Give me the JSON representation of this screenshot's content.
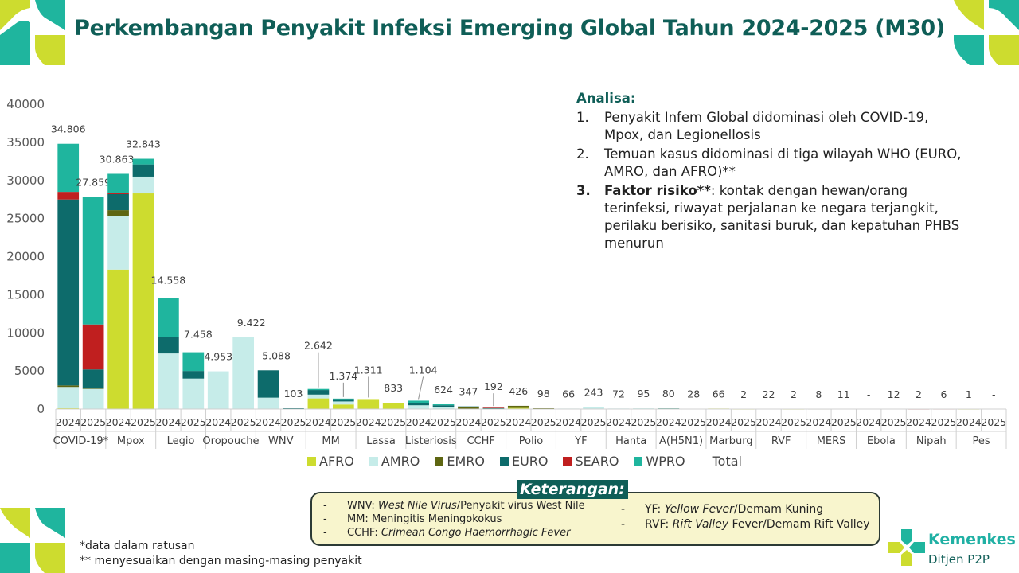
{
  "title": "Perkembangan Penyakit Infeksi Emerging Global Tahun 2024-2025 (M30)",
  "analysis": {
    "heading": "Analisa:",
    "items": [
      {
        "num": "1.",
        "text": "Penyakit Infem Global didominasi oleh COVID-19, Mpox, dan Legionellosis"
      },
      {
        "num": "2.",
        "text": "Temuan kasus didominasi di tiga wilayah WHO (EURO, AMRO, dan AFRO)**"
      },
      {
        "num": "3.",
        "bold": "Faktor risiko**",
        "text": ": kontak dengan hewan/orang terinfeksi, riwayat perjalanan ke negara terjangkit, perilaku berisiko, sanitasi buruk, dan kepatuhan PHBS menurun"
      }
    ]
  },
  "legend": [
    {
      "name": "AFRO",
      "color": "#cddc2f"
    },
    {
      "name": "AMRO",
      "color": "#c6ece9"
    },
    {
      "name": "EMRO",
      "color": "#5e6612"
    },
    {
      "name": "EURO",
      "color": "#0d6b6b"
    },
    {
      "name": "SEARO",
      "color": "#c01f1f"
    },
    {
      "name": "WPRO",
      "color": "#1fb59e"
    },
    {
      "name": "Total",
      "color": ""
    }
  ],
  "keterangan": {
    "title": "Keterangan:",
    "left": [
      {
        "dash": "-",
        "abbr": "WNV: ",
        "ital": "West Nile Virus",
        "rest": "/Penyakit virus West Nile"
      },
      {
        "dash": "-",
        "abbr": "MM: ",
        "ital": "",
        "rest": "Meningitis Meningokokus"
      },
      {
        "dash": "-",
        "abbr": "CCHF: ",
        "ital": "Crimean Congo Haemorrhagic Fever",
        "rest": ""
      }
    ],
    "right": [
      {
        "dash": "-",
        "abbr": "YF: ",
        "ital": "Yellow Fever",
        "rest": "/Demam Kuning"
      },
      {
        "dash": "-",
        "abbr": "RVF: ",
        "ital": "Rift Valley",
        "rest": " Fever/Demam Rift Valley"
      }
    ]
  },
  "footnotes": {
    "f1": "*data dalam ratusan",
    "f2": "** menyesuaikan dengan masing-masing penyakit"
  },
  "logo": {
    "name": "Kemenkes",
    "sub": "Ditjen P2P"
  },
  "chart_data": {
    "type": "bar",
    "stacked": true,
    "ylim": [
      0,
      40000
    ],
    "yticks": [
      0,
      5000,
      10000,
      15000,
      20000,
      25000,
      30000,
      35000,
      40000
    ],
    "ytick_labels": [
      "0",
      "5000",
      "10000",
      "15000",
      "20000",
      "25000",
      "30000",
      "35000",
      "40000"
    ],
    "groups": [
      "COVID-19*",
      "Mpox",
      "Legio",
      "Oropouche",
      "WNV",
      "MM",
      "Lassa",
      "Listeriosis",
      "CCHF",
      "Polio",
      "YF",
      "Hanta",
      "A(H5N1)",
      "Marburg",
      "RVF",
      "MERS",
      "Ebola",
      "Nipah",
      "Pes"
    ],
    "years": [
      "2024",
      "2025"
    ],
    "series_order": [
      "AFRO",
      "AMRO",
      "EMRO",
      "EURO",
      "SEARO",
      "WPRO"
    ],
    "bars": [
      {
        "group": "COVID-19*",
        "year": "2024",
        "total_label": "34.806",
        "AFRO": 100,
        "AMRO": 2800,
        "EMRO": 200,
        "EURO": 24400,
        "SEARO": 1000,
        "WPRO": 6306
      },
      {
        "group": "COVID-19*",
        "year": "2025",
        "total_label": "27.859",
        "AFRO": 50,
        "AMRO": 2600,
        "EMRO": 50,
        "EURO": 2500,
        "SEARO": 5900,
        "WPRO": 16759
      },
      {
        "group": "Mpox",
        "year": "2024",
        "total_label": "30.863",
        "AFRO": 18300,
        "AMRO": 7000,
        "EMRO": 800,
        "EURO": 2100,
        "SEARO": 200,
        "WPRO": 2463
      },
      {
        "group": "Mpox",
        "year": "2025",
        "total_label": "32.843",
        "AFRO": 28300,
        "AMRO": 2200,
        "EMRO": 0,
        "EURO": 1600,
        "SEARO": 0,
        "WPRO": 743
      },
      {
        "group": "Legio",
        "year": "2024",
        "total_label": "14.558",
        "AFRO": 0,
        "AMRO": 7300,
        "EMRO": 0,
        "EURO": 2200,
        "SEARO": 0,
        "WPRO": 5058
      },
      {
        "group": "Legio",
        "year": "2025",
        "total_label": "7.458",
        "AFRO": 0,
        "AMRO": 4000,
        "EMRO": 0,
        "EURO": 1000,
        "SEARO": 0,
        "WPRO": 2458
      },
      {
        "group": "Oropouche",
        "year": "2024",
        "total_label": "4.953",
        "AFRO": 0,
        "AMRO": 4953,
        "EMRO": 0,
        "EURO": 0,
        "SEARO": 0,
        "WPRO": 0
      },
      {
        "group": "Oropouche",
        "year": "2025",
        "total_label": "9.422",
        "AFRO": 0,
        "AMRO": 9422,
        "EMRO": 0,
        "EURO": 0,
        "SEARO": 0,
        "WPRO": 0
      },
      {
        "group": "WNV",
        "year": "2024",
        "total_label": "5.088",
        "AFRO": 0,
        "AMRO": 1500,
        "EMRO": 0,
        "EURO": 3588,
        "SEARO": 0,
        "WPRO": 0
      },
      {
        "group": "WNV",
        "year": "2025",
        "total_label": "103",
        "AFRO": 0,
        "AMRO": 40,
        "EMRO": 0,
        "EURO": 63,
        "SEARO": 0,
        "WPRO": 0
      },
      {
        "group": "MM",
        "year": "2024",
        "total_label": "2.642",
        "AFRO": 1400,
        "AMRO": 500,
        "EMRO": 0,
        "EURO": 600,
        "SEARO": 0,
        "WPRO": 142
      },
      {
        "group": "MM",
        "year": "2025",
        "total_label": "1.374",
        "AFRO": 600,
        "AMRO": 400,
        "EMRO": 0,
        "EURO": 300,
        "SEARO": 0,
        "WPRO": 74
      },
      {
        "group": "Lassa",
        "year": "2024",
        "total_label": "1.311",
        "AFRO": 1311,
        "AMRO": 0,
        "EMRO": 0,
        "EURO": 0,
        "SEARO": 0,
        "WPRO": 0
      },
      {
        "group": "Lassa",
        "year": "2025",
        "total_label": "833",
        "AFRO": 833,
        "AMRO": 0,
        "EMRO": 0,
        "EURO": 0,
        "SEARO": 0,
        "WPRO": 0
      },
      {
        "group": "Listeriosis",
        "year": "2024",
        "total_label": "1.104",
        "AFRO": 0,
        "AMRO": 500,
        "EMRO": 0,
        "EURO": 300,
        "SEARO": 0,
        "WPRO": 304
      },
      {
        "group": "Listeriosis",
        "year": "2025",
        "total_label": "624",
        "AFRO": 0,
        "AMRO": 250,
        "EMRO": 0,
        "EURO": 250,
        "SEARO": 0,
        "WPRO": 124
      },
      {
        "group": "CCHF",
        "year": "2024",
        "total_label": "347",
        "AFRO": 50,
        "AMRO": 0,
        "EMRO": 200,
        "EURO": 97,
        "SEARO": 0,
        "WPRO": 0
      },
      {
        "group": "CCHF",
        "year": "2025",
        "total_label": "192",
        "AFRO": 20,
        "AMRO": 0,
        "EMRO": 80,
        "EURO": 22,
        "SEARO": 70,
        "WPRO": 0
      },
      {
        "group": "Polio",
        "year": "2024",
        "total_label": "426",
        "AFRO": 150,
        "AMRO": 0,
        "EMRO": 276,
        "EURO": 0,
        "SEARO": 0,
        "WPRO": 0
      },
      {
        "group": "Polio",
        "year": "2025",
        "total_label": "98",
        "AFRO": 40,
        "AMRO": 0,
        "EMRO": 58,
        "EURO": 0,
        "SEARO": 0,
        "WPRO": 0
      },
      {
        "group": "YF",
        "year": "2024",
        "total_label": "66",
        "AFRO": 20,
        "AMRO": 46,
        "EMRO": 0,
        "EURO": 0,
        "SEARO": 0,
        "WPRO": 0
      },
      {
        "group": "YF",
        "year": "2025",
        "total_label": "243",
        "AFRO": 20,
        "AMRO": 223,
        "EMRO": 0,
        "EURO": 0,
        "SEARO": 0,
        "WPRO": 0
      },
      {
        "group": "Hanta",
        "year": "2024",
        "total_label": "72",
        "AFRO": 0,
        "AMRO": 72,
        "EMRO": 0,
        "EURO": 0,
        "SEARO": 0,
        "WPRO": 0
      },
      {
        "group": "Hanta",
        "year": "2025",
        "total_label": "95",
        "AFRO": 0,
        "AMRO": 95,
        "EMRO": 0,
        "EURO": 0,
        "SEARO": 0,
        "WPRO": 0
      },
      {
        "group": "A(H5N1)",
        "year": "2024",
        "total_label": "80",
        "AFRO": 0,
        "AMRO": 66,
        "EMRO": 0,
        "EURO": 0,
        "SEARO": 4,
        "WPRO": 10
      },
      {
        "group": "A(H5N1)",
        "year": "2025",
        "total_label": "28",
        "AFRO": 0,
        "AMRO": 10,
        "EMRO": 0,
        "EURO": 0,
        "SEARO": 8,
        "WPRO": 10
      },
      {
        "group": "Marburg",
        "year": "2024",
        "total_label": "66",
        "AFRO": 66,
        "AMRO": 0,
        "EMRO": 0,
        "EURO": 0,
        "SEARO": 0,
        "WPRO": 0
      },
      {
        "group": "Marburg",
        "year": "2025",
        "total_label": "2",
        "AFRO": 2,
        "AMRO": 0,
        "EMRO": 0,
        "EURO": 0,
        "SEARO": 0,
        "WPRO": 0
      },
      {
        "group": "RVF",
        "year": "2024",
        "total_label": "22",
        "AFRO": 22,
        "AMRO": 0,
        "EMRO": 0,
        "EURO": 0,
        "SEARO": 0,
        "WPRO": 0
      },
      {
        "group": "RVF",
        "year": "2025",
        "total_label": "2",
        "AFRO": 2,
        "AMRO": 0,
        "EMRO": 0,
        "EURO": 0,
        "SEARO": 0,
        "WPRO": 0
      },
      {
        "group": "MERS",
        "year": "2024",
        "total_label": "8",
        "AFRO": 0,
        "AMRO": 0,
        "EMRO": 8,
        "EURO": 0,
        "SEARO": 0,
        "WPRO": 0
      },
      {
        "group": "MERS",
        "year": "2025",
        "total_label": "11",
        "AFRO": 0,
        "AMRO": 0,
        "EMRO": 11,
        "EURO": 0,
        "SEARO": 0,
        "WPRO": 0
      },
      {
        "group": "Ebola",
        "year": "2024",
        "total_label": "-",
        "AFRO": 0,
        "AMRO": 0,
        "EMRO": 0,
        "EURO": 0,
        "SEARO": 0,
        "WPRO": 0
      },
      {
        "group": "Ebola",
        "year": "2025",
        "total_label": "12",
        "AFRO": 12,
        "AMRO": 0,
        "EMRO": 0,
        "EURO": 0,
        "SEARO": 0,
        "WPRO": 0
      },
      {
        "group": "Nipah",
        "year": "2024",
        "total_label": "2",
        "AFRO": 0,
        "AMRO": 0,
        "EMRO": 0,
        "EURO": 0,
        "SEARO": 2,
        "WPRO": 0
      },
      {
        "group": "Nipah",
        "year": "2025",
        "total_label": "6",
        "AFRO": 0,
        "AMRO": 0,
        "EMRO": 0,
        "EURO": 0,
        "SEARO": 6,
        "WPRO": 0
      },
      {
        "group": "Pes",
        "year": "2024",
        "total_label": "1",
        "AFRO": 1,
        "AMRO": 0,
        "EMRO": 0,
        "EURO": 0,
        "SEARO": 0,
        "WPRO": 0
      },
      {
        "group": "Pes",
        "year": "2025",
        "total_label": "-",
        "AFRO": 0,
        "AMRO": 0,
        "EMRO": 0,
        "EURO": 0,
        "SEARO": 0,
        "WPRO": 0
      }
    ]
  }
}
